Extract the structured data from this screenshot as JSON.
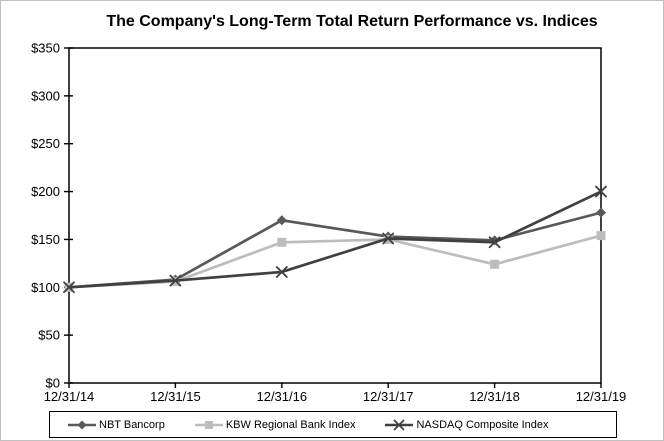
{
  "chart_data": {
    "type": "line",
    "title": "The Company's Long-Term Total Return Performance vs. Indices",
    "categories": [
      "12/31/14",
      "12/31/15",
      "12/31/16",
      "12/31/17",
      "12/31/18",
      "12/31/19"
    ],
    "series": [
      {
        "name": "NBT Bancorp",
        "values": [
          100,
          108,
          170,
          153,
          149,
          178
        ],
        "color": "#595959",
        "marker": "diamond"
      },
      {
        "name": "KBW Regional Bank Index",
        "values": [
          100,
          106,
          147,
          150,
          124,
          154
        ],
        "color": "#bdbdbd",
        "marker": "square"
      },
      {
        "name": "NASDAQ Composite Index",
        "values": [
          100,
          107,
          116,
          151,
          147,
          200
        ],
        "color": "#404040",
        "marker": "x"
      }
    ],
    "xlabel": "",
    "ylabel": "",
    "ylim": [
      0,
      350
    ],
    "ytick_step": 50,
    "ytick_labels": [
      "$0",
      "$50",
      "$100",
      "$150",
      "$200",
      "$250",
      "$300",
      "$350"
    ],
    "grid": false,
    "legend_position": "bottom",
    "axis_color": "#000000",
    "plot_background": "#ffffff"
  }
}
